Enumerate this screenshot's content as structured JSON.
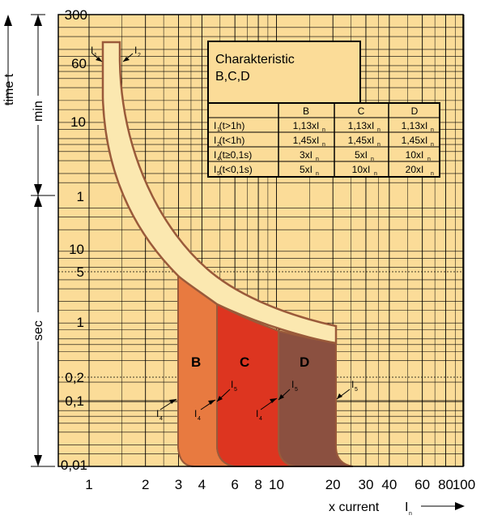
{
  "chart_data": {
    "type": "area",
    "y_axis": {
      "title": "time t",
      "min_label": "min",
      "sec_label": "sec",
      "ticks_top": [
        "300",
        "60",
        "10",
        "1"
      ],
      "ticks_bottom": [
        "10",
        "5",
        "1",
        "0,2",
        "0,1",
        "0,01"
      ]
    },
    "x_axis": {
      "title": "x current",
      "title_symbol": "I",
      "title_subscript": "n",
      "tick_labels": [
        "1",
        "2",
        "3",
        "4",
        "6",
        "8",
        "10",
        "20",
        "30",
        "40",
        "60",
        "80",
        "100"
      ],
      "tick_values": [
        1,
        2,
        3,
        4,
        6,
        8,
        10,
        20,
        30,
        40,
        60,
        80,
        100
      ],
      "scale": "log"
    },
    "zones": [
      {
        "name": "B",
        "color": "#e87a40",
        "x_from": 3,
        "x_to": 5
      },
      {
        "name": "C",
        "color": "#dd3520",
        "x_from": 5,
        "x_to": 10
      },
      {
        "name": "D",
        "color": "#8b5040",
        "x_from": 10,
        "x_to": 20
      }
    ],
    "curve_labels": {
      "i1": "I",
      "i1_sub": "1",
      "i2": "I",
      "i2_sub": "2"
    },
    "zone_marker_labels": [
      {
        "text": "I",
        "sub": "4"
      },
      {
        "text": "I",
        "sub": "5"
      },
      {
        "text": "I",
        "sub": "4"
      },
      {
        "text": "I",
        "sub": "5"
      },
      {
        "text": "I",
        "sub": "4"
      },
      {
        "text": "I",
        "sub": "5"
      }
    ],
    "table": {
      "title_line1": "Charakteristic",
      "title_line2": "B,C,D",
      "headers": [
        "B",
        "C",
        "D"
      ],
      "rows": [
        {
          "label": "I (t>1h)",
          "label_sub": "1",
          "values": [
            "1,13xI",
            "1,13xI",
            "1,13xI"
          ],
          "value_sub": "n"
        },
        {
          "label": "I (t<1h)",
          "label_sub": "2",
          "values": [
            "1,45xI",
            "1,45xI",
            "1,45xI"
          ],
          "value_sub": "n"
        },
        {
          "label": "I (t≥0,1s)",
          "label_sub": "4",
          "values": [
            "3xI",
            "5xI",
            "10xI"
          ],
          "value_sub": "n"
        },
        {
          "label": "I (t<0,1s)",
          "label_sub": "5",
          "values": [
            "5xI",
            "10xI",
            "20xI"
          ],
          "value_sub": "n"
        }
      ]
    },
    "colors": {
      "background": "#fbdc98",
      "band": "#fbe8b0",
      "band_stroke": "#9a5a3a",
      "grid": "#000000"
    }
  }
}
